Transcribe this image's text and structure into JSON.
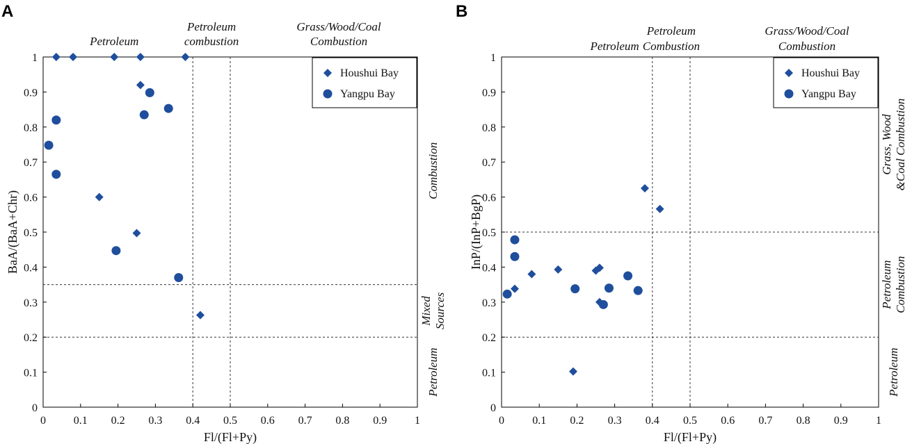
{
  "colors": {
    "marker": "#1f4e9c",
    "axis": "#000000"
  },
  "chart_data": [
    {
      "panel": "A",
      "type": "scatter",
      "xlabel": "Fl/(Fl+Py)",
      "ylabel": "BaA/(BaA+Chr)",
      "xlim": [
        0,
        1
      ],
      "ylim": [
        0,
        1
      ],
      "xticks": [
        "0",
        "0.1",
        "0.2",
        "0.3",
        "0.4",
        "0.5",
        "0.6",
        "0.7",
        "0.8",
        "0.9",
        "1"
      ],
      "yticks": [
        "0",
        "0.1",
        "0.2",
        "0.3",
        "0.4",
        "0.5",
        "0.6",
        "0.7",
        "0.8",
        "0.9",
        "1"
      ],
      "vlines": [
        0.4,
        0.5
      ],
      "hlines": [
        0.2,
        0.35
      ],
      "top_regions": [
        {
          "text": "Petroleum",
          "x": 0.19,
          "row": 1
        },
        {
          "text": "Petroleum",
          "x": 0.45,
          "row": 0
        },
        {
          "text": "combustion",
          "x": 0.45,
          "row": 1
        },
        {
          "text": "Grass/Wood/Coal",
          "x": 0.79,
          "row": 0
        },
        {
          "text": "Combustion",
          "x": 0.79,
          "row": 1
        }
      ],
      "right_regions": [
        {
          "lines": [
            "Combustion"
          ],
          "y": 0.675
        },
        {
          "lines": [
            "Mixed",
            "Sources"
          ],
          "y": 0.275
        },
        {
          "lines": [
            "Petroleum"
          ],
          "y": 0.1
        }
      ],
      "legend": {
        "position": "top-right",
        "entries": [
          "Houshui Bay",
          "Yangpu Bay"
        ]
      },
      "series": [
        {
          "name": "Houshui Bay",
          "marker": "diamond",
          "points": [
            [
              0.035,
              1.0
            ],
            [
              0.08,
              1.0
            ],
            [
              0.19,
              1.0
            ],
            [
              0.26,
              1.0
            ],
            [
              0.38,
              1.0
            ],
            [
              0.26,
              0.92
            ],
            [
              0.15,
              0.6
            ],
            [
              0.25,
              0.497
            ],
            [
              0.42,
              0.263
            ]
          ]
        },
        {
          "name": "Yangpu Bay",
          "marker": "circle",
          "points": [
            [
              0.285,
              0.898
            ],
            [
              0.335,
              0.853
            ],
            [
              0.27,
              0.835
            ],
            [
              0.035,
              0.82
            ],
            [
              0.015,
              0.748
            ],
            [
              0.035,
              0.665
            ],
            [
              0.195,
              0.447
            ],
            [
              0.362,
              0.37
            ]
          ]
        }
      ]
    },
    {
      "panel": "B",
      "type": "scatter",
      "xlabel": "Fl/(Fl+Py)",
      "ylabel": "InP/(InP+BgP)",
      "xlim": [
        0,
        1
      ],
      "ylim": [
        0,
        1
      ],
      "xticks": [
        "0",
        "0.1",
        "0.2",
        "0.3",
        "0.4",
        "0.5",
        "0.6",
        "0.7",
        "0.8",
        "0.9",
        "1"
      ],
      "yticks": [
        "0",
        "0.1",
        "0.2",
        "0.3",
        "0.4",
        "0.5",
        "0.6",
        "0.7",
        "0.8",
        "0.9",
        "1"
      ],
      "vlines": [
        0.4,
        0.5
      ],
      "hlines": [
        0.2,
        0.5
      ],
      "top_regions": [
        {
          "text": "Petroleum",
          "x": 0.3,
          "row": 1
        },
        {
          "text": "Petroleum",
          "x": 0.45,
          "row": 0
        },
        {
          "text": "Combustion",
          "x": 0.45,
          "row": 1
        },
        {
          "text": "Grass/Wood/Coal",
          "x": 0.81,
          "row": 0
        },
        {
          "text": "Combustion",
          "x": 0.81,
          "row": 1
        }
      ],
      "right_regions": [
        {
          "lines": [
            "Grass, Wood",
            "&Coal Combustion"
          ],
          "y": 0.75
        },
        {
          "lines": [
            "Petroleum",
            "Combustion"
          ],
          "y": 0.35
        },
        {
          "lines": [
            "Petroleum"
          ],
          "y": 0.1
        }
      ],
      "legend": {
        "position": "top-right",
        "entries": [
          "Houshui Bay",
          "Yangpu Bay"
        ]
      },
      "series": [
        {
          "name": "Houshui Bay",
          "marker": "diamond",
          "points": [
            [
              0.38,
              0.625
            ],
            [
              0.42,
              0.566
            ],
            [
              0.15,
              0.393
            ],
            [
              0.26,
              0.398
            ],
            [
              0.25,
              0.39
            ],
            [
              0.08,
              0.38
            ],
            [
              0.035,
              0.338
            ],
            [
              0.26,
              0.3
            ],
            [
              0.19,
              0.102
            ]
          ]
        },
        {
          "name": "Yangpu Bay",
          "marker": "circle",
          "points": [
            [
              0.035,
              0.478
            ],
            [
              0.035,
              0.43
            ],
            [
              0.015,
              0.323
            ],
            [
              0.195,
              0.338
            ],
            [
              0.285,
              0.34
            ],
            [
              0.335,
              0.375
            ],
            [
              0.362,
              0.333
            ],
            [
              0.27,
              0.293
            ]
          ]
        }
      ]
    }
  ]
}
